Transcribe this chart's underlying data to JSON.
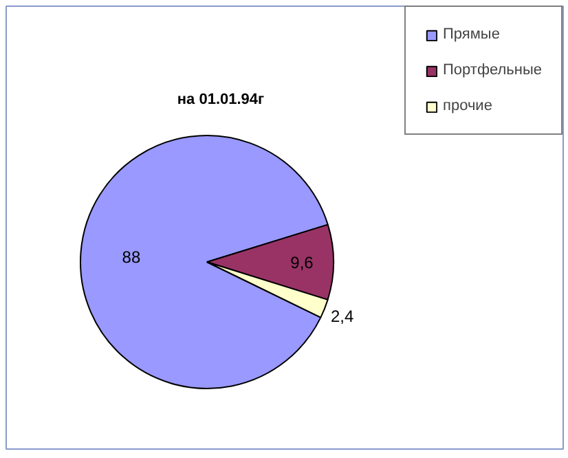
{
  "chart_data": {
    "type": "pie",
    "title": "на 01.01.94г",
    "categories": [
      "Прямые",
      "Портфельные",
      "прочие"
    ],
    "values": [
      88,
      9.6,
      2.4
    ],
    "colors": [
      "#9999ff",
      "#993366",
      "#ffffcc"
    ],
    "value_labels": [
      "88",
      "9,6",
      "2,4"
    ],
    "legend": "top right"
  }
}
